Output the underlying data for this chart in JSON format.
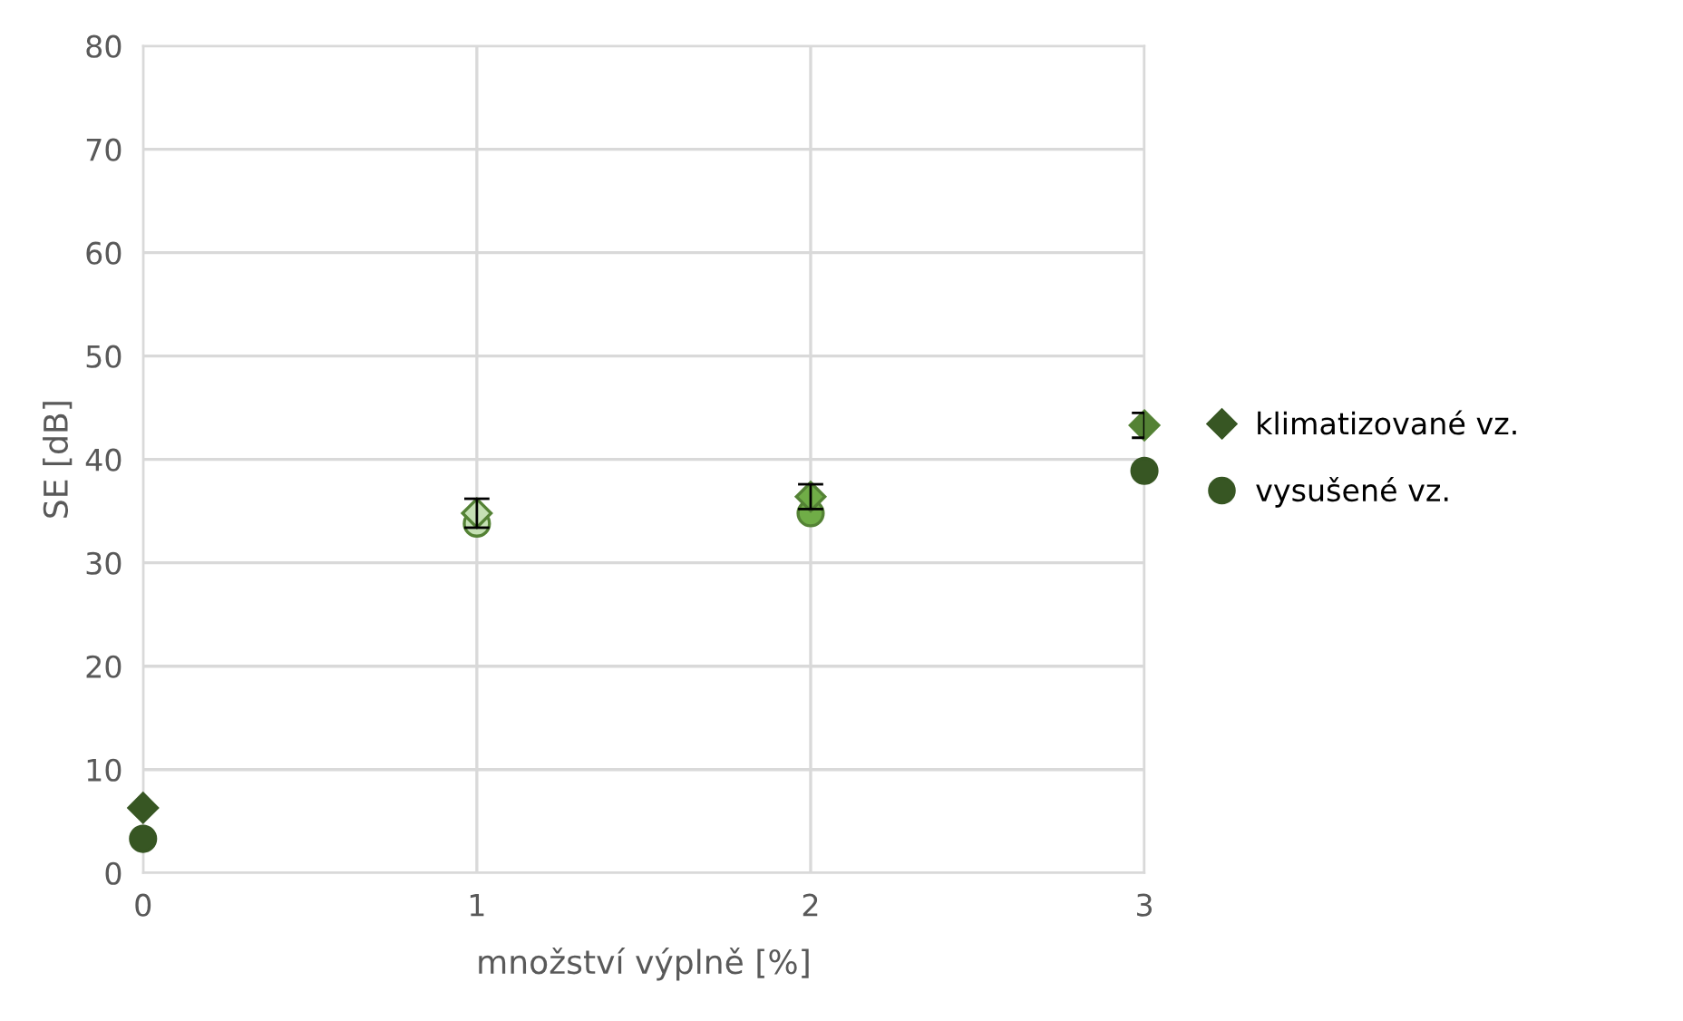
{
  "chart_data": {
    "type": "scatter",
    "xlabel": "množství výplně [%]",
    "ylabel": "SE [dB]",
    "xlim": [
      0,
      3
    ],
    "xticks": [
      0,
      1,
      2,
      3
    ],
    "ylim": [
      0,
      80
    ],
    "yticks": [
      0,
      10,
      20,
      30,
      40,
      50,
      60,
      70,
      80
    ],
    "grid": true,
    "legend": "right",
    "series": [
      {
        "name": "klimatizované vz.",
        "color": "#375623",
        "marker": "diamond",
        "x": [
          0,
          1,
          2,
          3
        ],
        "values": [
          6.3,
          34.8,
          36.4,
          43.3
        ],
        "colors": [
          "#375623",
          "#c5e0b4",
          "#70ad47",
          "#548235"
        ],
        "errors": [
          null,
          1.4,
          1.2,
          1.2
        ]
      },
      {
        "name": "vysušené vz.",
        "color": "#375623",
        "marker": "circle",
        "x": [
          0,
          1,
          2,
          3
        ],
        "values": [
          3.3,
          33.8,
          34.8,
          38.9
        ],
        "colors": [
          "#375623",
          "#c5e0b4",
          "#70ad47",
          "#375623"
        ]
      }
    ]
  }
}
